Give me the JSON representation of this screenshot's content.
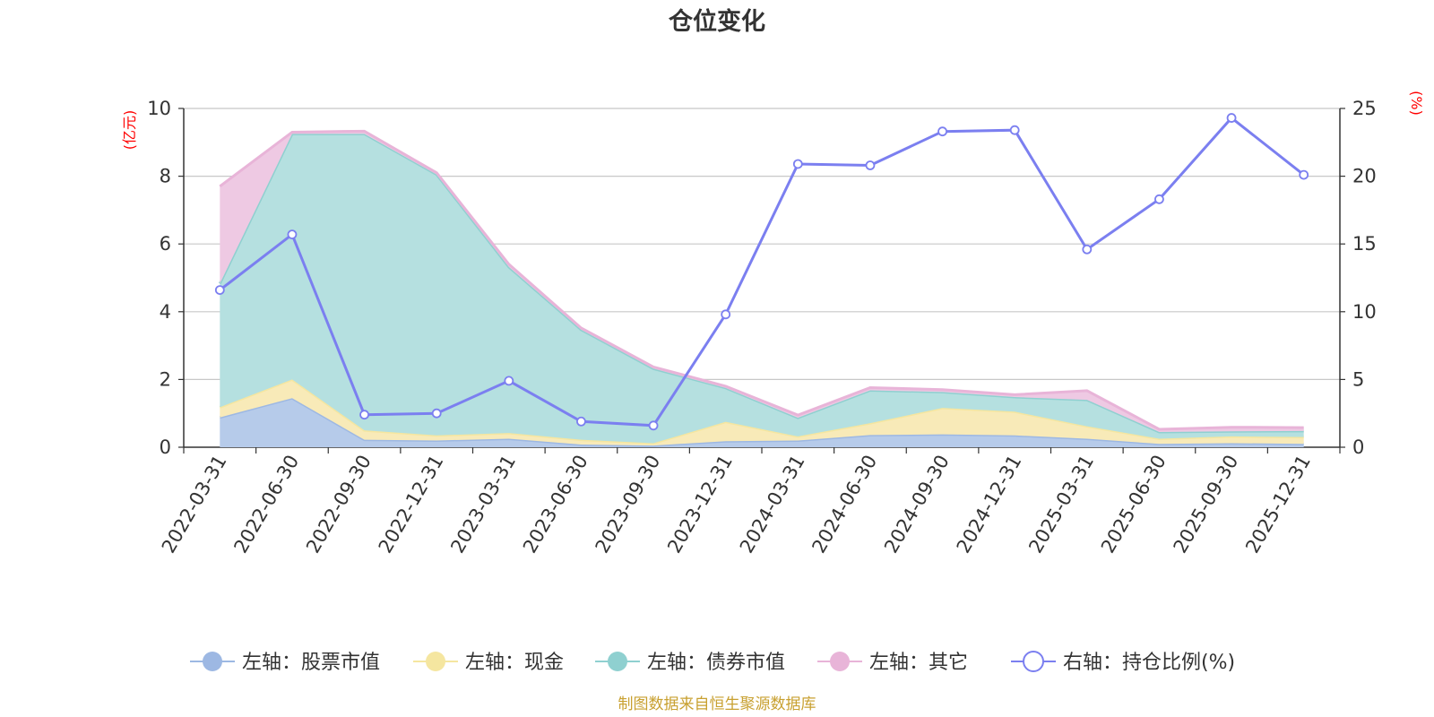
{
  "chart_data": {
    "type": "area",
    "title": "仓位变化",
    "left_unit": "(亿元)",
    "right_unit": "(%)",
    "categories": [
      "2022-03-31",
      "2022-06-30",
      "2022-09-30",
      "2022-12-31",
      "2023-03-31",
      "2023-06-30",
      "2023-09-30",
      "2023-12-31",
      "2024-03-31",
      "2024-06-30",
      "2024-09-30",
      "2024-12-31",
      "2025-03-31",
      "2025-06-30",
      "2025-09-30",
      "2025-12-31"
    ],
    "left_axis": {
      "min": 0,
      "max": 10,
      "ticks": [
        "0",
        "2",
        "4",
        "6",
        "8",
        "10"
      ]
    },
    "right_axis": {
      "min": 0,
      "max": 25,
      "ticks": [
        "0",
        "5",
        "10",
        "15",
        "20",
        "25"
      ]
    },
    "series": [
      {
        "name": "左轴：股票市值",
        "axis": "left",
        "stacked": true,
        "color": "#9db8e3",
        "fill": "#b6cbea",
        "values": [
          0.88,
          1.45,
          0.22,
          0.2,
          0.25,
          0.08,
          0.05,
          0.18,
          0.2,
          0.36,
          0.38,
          0.35,
          0.25,
          0.1,
          0.12,
          0.1
        ]
      },
      {
        "name": "左轴：现金",
        "axis": "left",
        "stacked": true,
        "color": "#f5e6a0",
        "fill": "#f8eab8",
        "values": [
          0.3,
          0.55,
          0.28,
          0.15,
          0.17,
          0.14,
          0.07,
          0.57,
          0.12,
          0.35,
          0.78,
          0.7,
          0.37,
          0.15,
          0.2,
          0.2
        ]
      },
      {
        "name": "左轴：债券市值",
        "axis": "left",
        "stacked": true,
        "color": "#8fd0d0",
        "fill": "#b5e0e0",
        "values": [
          3.65,
          7.25,
          8.75,
          7.7,
          4.9,
          3.25,
          2.2,
          1.0,
          0.55,
          0.97,
          0.47,
          0.43,
          0.78,
          0.2,
          0.15,
          0.18
        ]
      },
      {
        "name": "左轴：其它",
        "axis": "left",
        "stacked": true,
        "color": "#e8b4d8",
        "fill": "#eec9e3",
        "values": [
          2.87,
          0.05,
          0.08,
          0.05,
          0.08,
          0.05,
          0.05,
          0.05,
          0.08,
          0.08,
          0.07,
          0.07,
          0.27,
          0.08,
          0.12,
          0.1
        ]
      },
      {
        "name": "右轴：持仓比例(%)",
        "axis": "right",
        "stacked": false,
        "color": "#7b7ff0",
        "values": [
          11.6,
          15.7,
          2.4,
          2.5,
          4.9,
          1.9,
          1.6,
          9.8,
          20.9,
          20.8,
          23.3,
          23.4,
          14.6,
          18.3,
          24.3,
          20.1
        ]
      }
    ],
    "grid": true,
    "legend_position": "bottom"
  },
  "source": "制图数据来自恒生聚源数据库"
}
